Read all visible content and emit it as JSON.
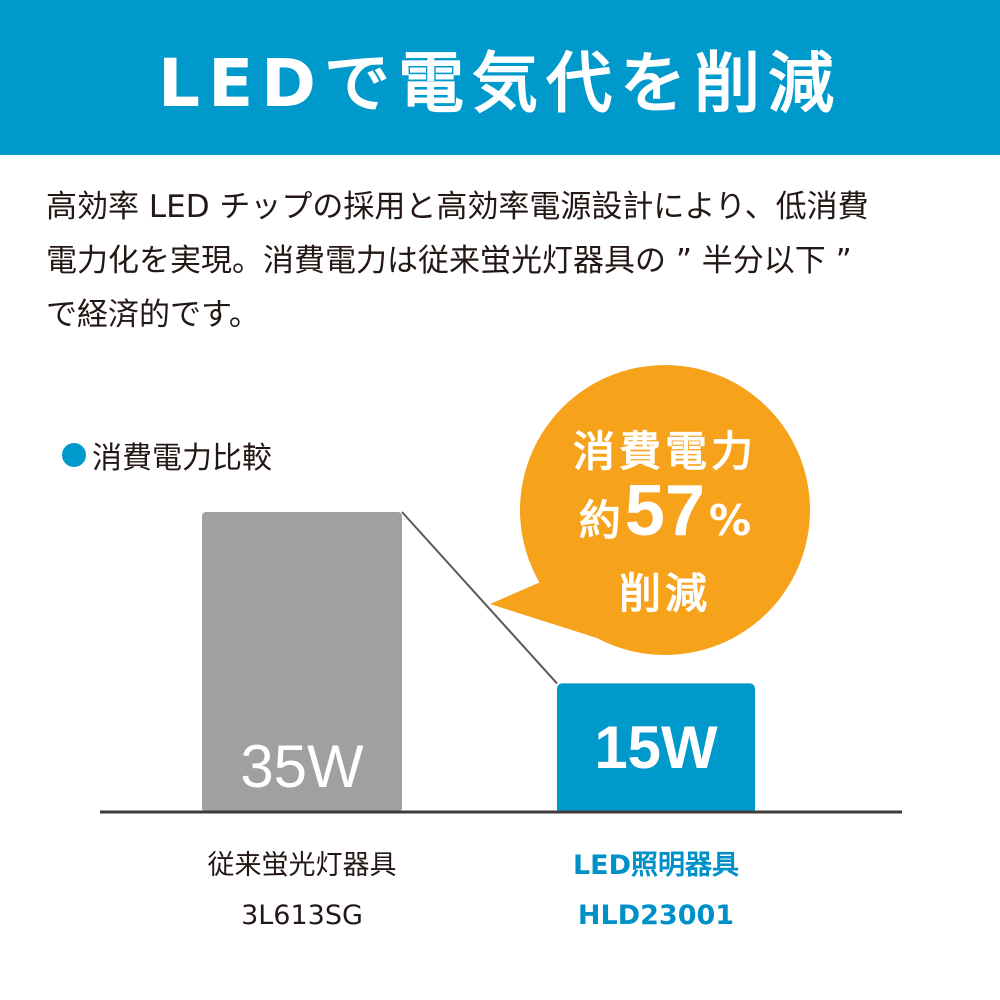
{
  "header": {
    "title": "LEDで電気代を削減"
  },
  "intro": {
    "lines": [
      "高効率 LED チップの採用と高効率電源設計により、低消費",
      "電力化を実現。消費電力は従来蛍光灯器具の ” 半分以下 ”",
      "で経済的です。"
    ]
  },
  "legend": {
    "label": "消費電力比較"
  },
  "badge": {
    "line1": "消費電力",
    "prefix": "約",
    "number": "57",
    "unit": "%",
    "line3": "削減"
  },
  "colors": {
    "brand": "#0099cc",
    "old_bar": "#a0a0a0",
    "badge": "#f7a21b",
    "baseline": "#3e3a39"
  },
  "chart_data": {
    "type": "bar",
    "categories": [
      "従来蛍光灯器具",
      "LED照明器具"
    ],
    "models": [
      "3L613SG",
      "HLD23001"
    ],
    "values": [
      35,
      15
    ],
    "value_labels": [
      "35W",
      "15W"
    ],
    "ylim": [
      0,
      35
    ],
    "reduction_label": "約57%削減"
  }
}
